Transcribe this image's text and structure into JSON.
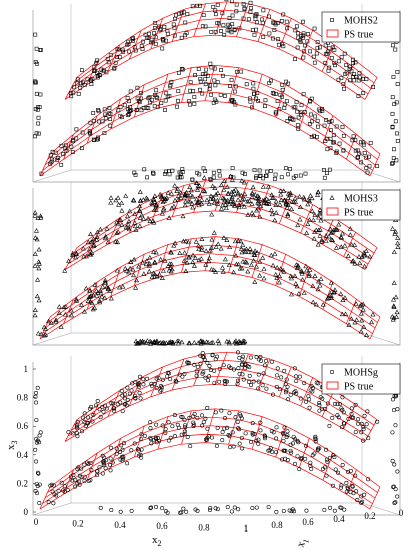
{
  "figure": {
    "panels": [
      {
        "legend": {
          "marker": "square",
          "series_label": "MOHS2",
          "reference_label": "PS true"
        }
      },
      {
        "legend": {
          "marker": "triangle",
          "series_label": "MOHS3",
          "reference_label": "PS true"
        }
      },
      {
        "legend": {
          "marker": "circle",
          "series_label": "MOHSg",
          "reference_label": "PS true"
        }
      }
    ],
    "colors": {
      "reference_surface": "#ff0000",
      "points": "#000000",
      "frame": "#9a9a9a"
    }
  },
  "chart_data": [
    {
      "type": "scatter",
      "view": "3d",
      "axes_labels_shown": false,
      "series": [
        {
          "name": "MOHS2",
          "marker": "square"
        },
        {
          "name": "PS true",
          "type": "surface"
        }
      ]
    },
    {
      "type": "scatter",
      "view": "3d",
      "axes_labels_shown": false,
      "series": [
        {
          "name": "MOHS3",
          "marker": "triangle"
        },
        {
          "name": "PS true",
          "type": "surface"
        }
      ]
    },
    {
      "type": "scatter",
      "view": "3d",
      "axes_labels_shown": true,
      "xlabel": "x",
      "xlabel_sub": "2",
      "ylabel": "x",
      "ylabel_sub": "1",
      "zlabel": "x",
      "zlabel_sub": "3",
      "x2_ticks": [
        "0",
        "0.2",
        "0.4",
        "0.6",
        "0.8",
        "1"
      ],
      "x1_ticks": [
        "1",
        "0.8",
        "0.6",
        "0.4",
        "0.2",
        "0"
      ],
      "z_ticks": [
        "0",
        "0.2",
        "0.4",
        "0.6",
        "0.8",
        "1"
      ],
      "xlim": [
        0,
        1
      ],
      "ylim": [
        0,
        1
      ],
      "zlim": [
        0,
        1
      ],
      "series": [
        {
          "name": "MOHSg",
          "marker": "circle"
        },
        {
          "name": "PS true",
          "type": "surface"
        }
      ]
    }
  ]
}
